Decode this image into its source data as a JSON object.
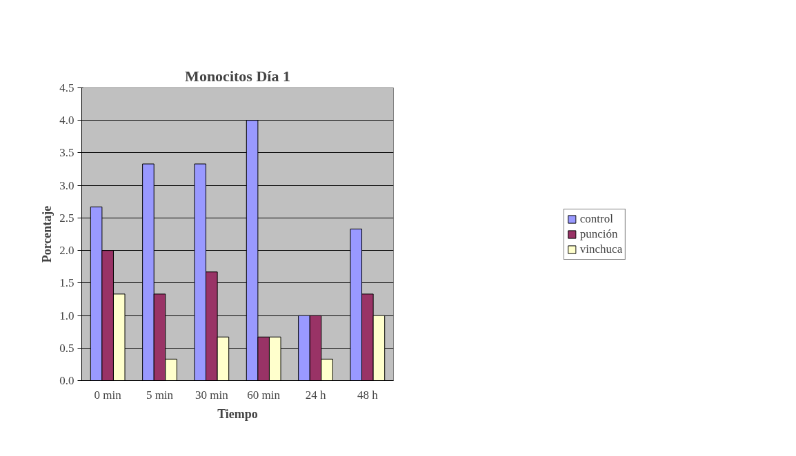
{
  "chart_data": {
    "type": "bar",
    "title": "Monocitos Día 1",
    "xlabel": "Tiempo",
    "ylabel": "Porcentaje",
    "categories": [
      "0 min",
      "5 min",
      "30 min",
      "60 min",
      "24 h",
      "48 h"
    ],
    "series": [
      {
        "name": "control",
        "color": "#9999ff",
        "values": [
          2.67,
          3.33,
          3.33,
          4.0,
          1.0,
          2.33
        ]
      },
      {
        "name": "punción",
        "color": "#993366",
        "values": [
          2.0,
          1.33,
          1.67,
          0.67,
          1.0,
          1.33
        ]
      },
      {
        "name": "vinchuca",
        "color": "#ffffcc",
        "values": [
          1.33,
          0.33,
          0.67,
          0.67,
          0.33,
          1.0
        ]
      }
    ],
    "ylim": [
      0,
      4.5
    ],
    "yticks": [
      {
        "value": 0,
        "label": "0.0"
      },
      {
        "value": 0.5,
        "label": "0.5"
      },
      {
        "value": 1,
        "label": "1.0"
      },
      {
        "value": 1.5,
        "label": "1.5"
      },
      {
        "value": 2,
        "label": "2.0"
      },
      {
        "value": 2.5,
        "label": "2.5"
      },
      {
        "value": 3,
        "label": "3.0"
      },
      {
        "value": 3.5,
        "label": "3.5"
      },
      {
        "value": 4,
        "label": "4.0"
      },
      {
        "value": 4.5,
        "label": "4.5"
      }
    ],
    "grid": "y",
    "legend": "right"
  }
}
